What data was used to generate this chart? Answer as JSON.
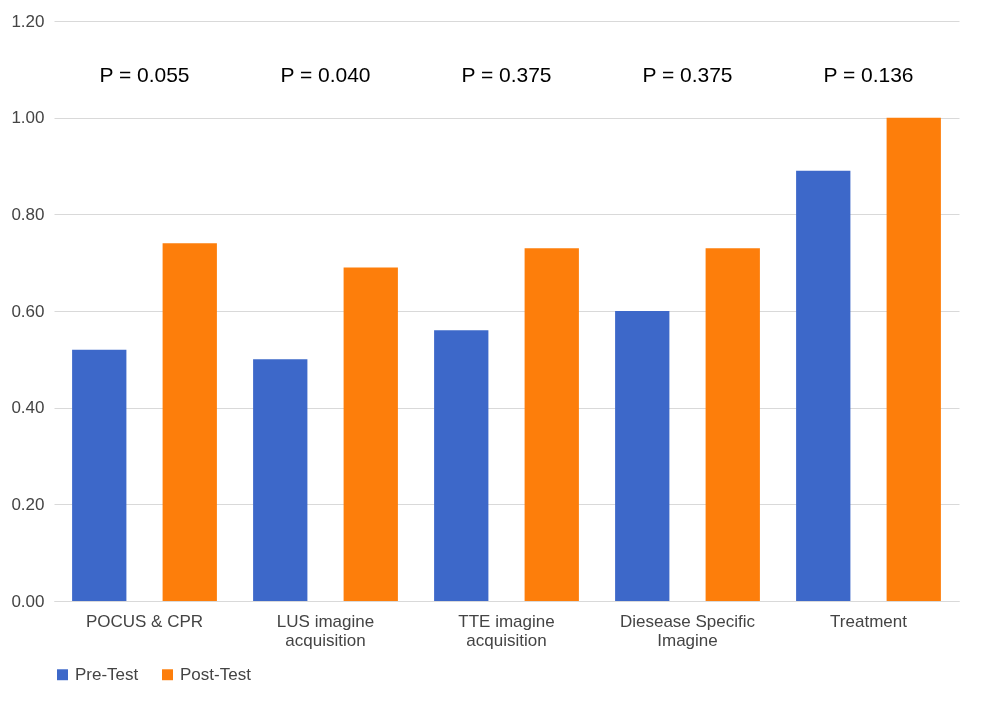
{
  "chart_data": {
    "type": "bar",
    "categories": [
      "POCUS & CPR",
      "LUS imagine acquisition",
      "TTE imagine acquisition",
      "Diesease Specific Imagine",
      "Treatment"
    ],
    "series": [
      {
        "name": "Pre-Test",
        "color": "#3d68c9",
        "values": [
          0.52,
          0.5,
          0.56,
          0.6,
          0.89
        ]
      },
      {
        "name": "Post-Test",
        "color": "#fd7e0b",
        "values": [
          0.74,
          0.69,
          0.73,
          0.73,
          1.0
        ]
      }
    ],
    "ylim": [
      0,
      1.2
    ],
    "yticks": [
      {
        "value": 0,
        "label": "0.00"
      },
      {
        "value": 0.2,
        "label": "0.20"
      },
      {
        "value": 0.4,
        "label": "0.40"
      },
      {
        "value": 0.6,
        "label": "0.60"
      },
      {
        "value": 0.8,
        "label": "0.80"
      },
      {
        "value": 1.0,
        "label": "1.00"
      },
      {
        "value": 1.2,
        "label": "1.20"
      }
    ],
    "grid": "y",
    "legend": "bottom",
    "annotations": [
      "P = 0.055",
      "P = 0.040",
      "P = 0.375",
      "P = 0.375",
      "P = 0.136"
    ]
  }
}
